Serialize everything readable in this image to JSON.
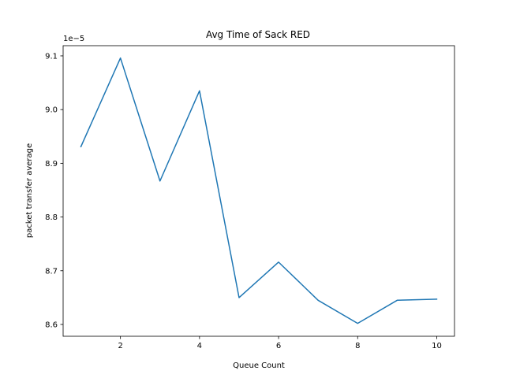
{
  "chart_data": {
    "type": "line",
    "title": "Avg Time of Sack RED",
    "xlabel": "Queue Count",
    "ylabel": "packet transfer average",
    "y_offset_label": "1e−5",
    "y_scale": 1e-05,
    "xlim": [
      0.55,
      10.45
    ],
    "ylim": [
      8.578,
      9.119
    ],
    "x_ticks": [
      2,
      4,
      6,
      8,
      10
    ],
    "y_ticks": [
      8.6,
      8.7,
      8.8,
      8.9,
      9.0,
      9.1
    ],
    "y_tick_labels": [
      "8.6",
      "8.7",
      "8.8",
      "8.9",
      "9.0",
      "9.1"
    ],
    "grid": false,
    "series": [
      {
        "color": "#1f77b4",
        "x": [
          1,
          2,
          3,
          4,
          5,
          6,
          7,
          8,
          9,
          10
        ],
        "y": [
          8.931,
          9.096,
          8.867,
          9.035,
          8.65,
          8.716,
          8.645,
          8.602,
          8.645,
          8.647
        ]
      }
    ]
  }
}
